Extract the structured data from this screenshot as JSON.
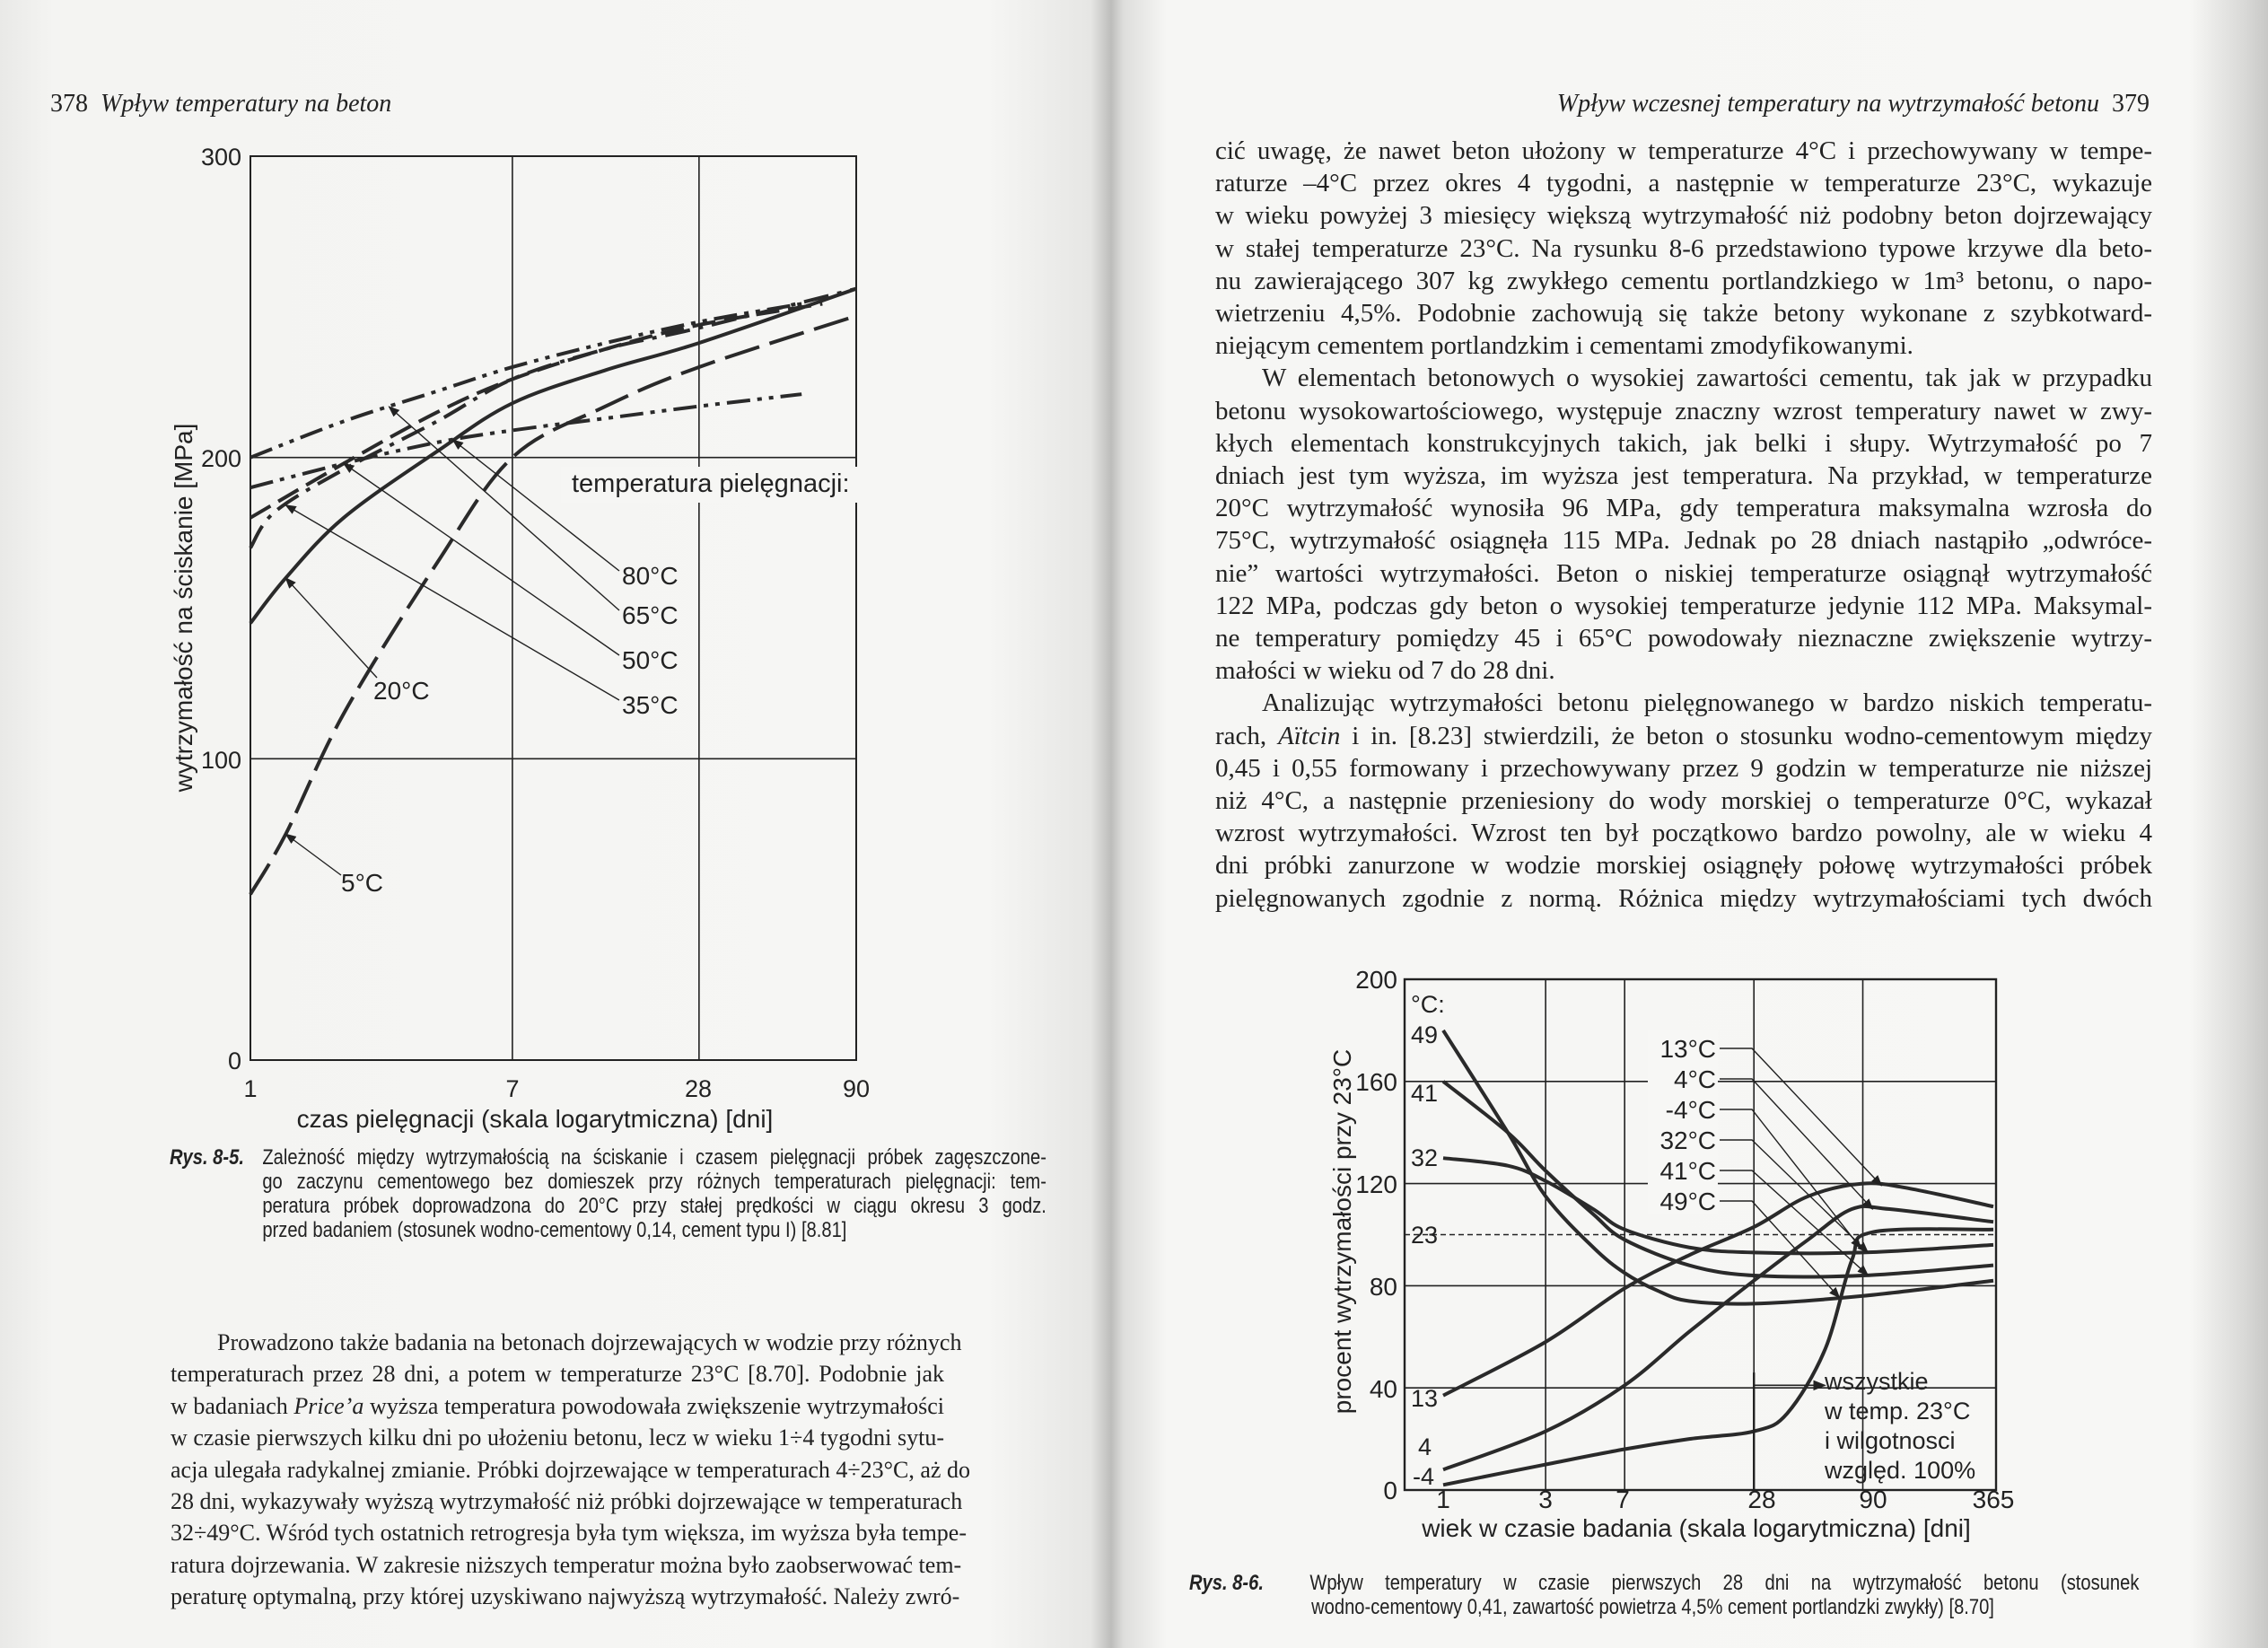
{
  "left_page": {
    "page_number": "378",
    "running_head": "Wpływ temperatury na beton",
    "caption": {
      "label": "Rys. 8-5.",
      "lines": [
        "Zależność między wytrzymałością na ściskanie i czasem pielęgnacji próbek zagęszczone-",
        "go zaczynu cementowego bez domieszek przy różnych temperaturach pielęgnacji: tem-",
        "peratura próbek doprowadzona do 20°C przy stałej prędkości w ciągu okresu 3 godz.",
        "przed badaniem (stosunek wodno-cementowy  0,14, cement typu I) [8.81]"
      ]
    },
    "body_lines": [
      "Prowadzono także badania na betonach dojrzewających w wodzie przy różnych",
      "temperaturach przez 28 dni, a potem w temperaturze 23°C [8.70]. Podobnie jak",
      [
        "w badaniach ",
        "Price’a",
        " wyższa temperatura powodowała zwiększenie wytrzymałości"
      ],
      "w czasie pierwszych kilku dni po ułożeniu betonu, lecz w wieku 1÷4 tygodni sytu-",
      "acja ulegała radykalnej zmianie. Próbki dojrzewające w temperaturach 4÷23°C, aż do",
      "28 dni, wykazywały wyższą wytrzymałość niż próbki dojrzewające w temperaturach",
      "32÷49°C. Wśród tych ostatnich retrogresja była tym większa, im wyższa była tempe-",
      "ratura dojrzewania. W zakresie niższych temperatur można było zaobserwować tem-",
      "peraturę optymalną, przy której uzyskiwano najwyższą wytrzymałość. Należy zwró-"
    ]
  },
  "right_page": {
    "page_number": "379",
    "running_head": "Wpływ wczesnej temperatury na wytrzymałość betonu",
    "body_lines": [
      "cić uwagę, że nawet beton ułożony w temperaturze 4°C i przechowywany w tempe-",
      "raturze –4°C przez okres 4 tygodni, a następnie w temperaturze 23°C, wykazuje",
      "w wieku powyżej 3 miesięcy większą wytrzymałość niż podobny beton dojrzewający",
      "w stałej temperaturze 23°C. Na rysunku 8-6 przedstawiono typowe krzywe dla beto-",
      "nu zawierającego 307 kg zwykłego cementu portlandzkiego w 1m³ betonu, o napo-",
      "wietrzeniu 4,5%. Podobnie zachowują się także betony wykonane z szybkotward-",
      "niejącym cementem portlandzkim i cementami zmodyfikowanymi.",
      "W elementach betonowych o wysokiej zawartości cementu, tak jak w przypadku",
      "betonu wysokowartościowego, występuje znaczny wzrost temperatury nawet w zwy-",
      "kłych elementach konstrukcyjnych takich, jak belki i słupy. Wytrzymałość po 7",
      "dniach jest tym wyższa, im wyższa jest temperatura. Na przykład, w temperaturze",
      "20°C wytrzymałość wynosiła 96 MPa, gdy temperatura maksymalna wzrosła do",
      "75°C, wytrzymałość osiągnęła 115 MPa. Jednak po 28 dniach nastąpiło „odwróce-",
      "nie” wartości wytrzymałości. Beton o niskiej temperaturze osiągnął wytrzymałość",
      "122 MPa, podczas gdy beton o wysokiej temperaturze jedynie 112 MPa. Maksymal-",
      "ne temperatury pomiędzy 45 i 65°C powodowały nieznaczne zwiększenie wytrzy-",
      "małości w wieku od 7 do 28 dni.",
      "Analizując wytrzymałości betonu pielęgnowanego w bardzo niskich temperatu-",
      [
        "rach, ",
        "Aïtcin",
        " i in. [8.23] stwierdzili, że beton o stosunku wodno-cementowym między"
      ],
      "0,45 i 0,55 formowany i przechowywany przez 9 godzin w temperaturze nie niższej",
      "niż 4°C, a następnie przeniesiony do wody morskiej o temperaturze 0°C, wykazał",
      "wzrost wytrzymałości. Wzrost ten był początkowo bardzo powolny, ale w wieku 4",
      "dni próbki zanurzone w wodzie morskiej osiągnęły połowę wytrzymałości próbek",
      "pielęgnowanych zgodnie z normą.  Różnica  między  wytrzymałościami tych dwóch"
    ],
    "caption": {
      "label": "Rys. 8-6.",
      "lines": [
        "Wpływ temperatury w czasie pierwszych 28 dni na wytrzymałość betonu (stosunek",
        "wodno-cementowy 0,41, zawartość powietrza 4,5% cement portlandzki zwykły) [8.70]"
      ]
    }
  },
  "chart_data": [
    {
      "type": "line",
      "xscale": "log",
      "xlim": [
        1,
        90
      ],
      "ylim": [
        0,
        300
      ],
      "xticks": [
        "1",
        "7",
        "28",
        "90"
      ],
      "yticks": [
        "0",
        "100",
        "200",
        "300"
      ],
      "grid": true,
      "xlabel": "czas pielęgnacji (skala logarytmiczna) [dni]",
      "ylabel": "wytrzymałość na ściskanie [MPa]",
      "legend_title": "temperatura pielęgnacji:",
      "line_color": "#2a2a2a",
      "series": [
        {
          "name": "80°C",
          "style": "dash-dot-dot",
          "points": [
            [
              1,
              190
            ],
            [
              2,
              198
            ],
            [
              4,
              205
            ],
            [
              7,
              209
            ],
            [
              14,
              213
            ],
            [
              28,
              217
            ],
            [
              60,
              221
            ]
          ]
        },
        {
          "name": "65°C",
          "style": "dash-dot-dot",
          "points": [
            [
              1,
              200
            ],
            [
              2,
              212
            ],
            [
              4,
              222
            ],
            [
              7,
              230
            ],
            [
              14,
              238
            ],
            [
              28,
              245
            ],
            [
              60,
              251
            ]
          ]
        },
        {
          "name": "50°C",
          "style": "dashed",
          "points": [
            [
              1,
              180
            ],
            [
              2,
              198
            ],
            [
              4,
              215
            ],
            [
              7,
              226
            ],
            [
              14,
              236
            ],
            [
              28,
              244
            ],
            [
              70,
              251
            ]
          ]
        },
        {
          "name": "35°C",
          "style": "dash-dot",
          "points": [
            [
              1,
              170
            ],
            [
              1.2,
              182
            ],
            [
              2,
              196
            ],
            [
              4,
              212
            ],
            [
              7,
              226
            ],
            [
              14,
              236
            ],
            [
              28,
              243
            ],
            [
              90,
              256
            ]
          ]
        },
        {
          "name": "20°C",
          "style": "solid",
          "points": [
            [
              1,
              145
            ],
            [
              1.3,
              160
            ],
            [
              2,
              180
            ],
            [
              4,
              202
            ],
            [
              7,
              218
            ],
            [
              14,
              229
            ],
            [
              28,
              238
            ],
            [
              90,
              256
            ]
          ]
        },
        {
          "name": "5°C",
          "style": "long-dash",
          "points": [
            [
              1,
              55
            ],
            [
              1.3,
              75
            ],
            [
              2,
              115
            ],
            [
              4,
              165
            ],
            [
              7,
              200
            ],
            [
              14,
              217
            ],
            [
              28,
              230
            ],
            [
              90,
              247
            ]
          ]
        }
      ]
    },
    {
      "type": "line",
      "xscale": "log",
      "xlim": [
        1,
        365
      ],
      "ylim": [
        0,
        200
      ],
      "xticks": [
        "1",
        "3",
        "7",
        "28",
        "90",
        "365"
      ],
      "yticks": [
        "0",
        "40",
        "80",
        "120",
        "160",
        "200"
      ],
      "grid": true,
      "reference_line": {
        "y": 100,
        "label": "23",
        "style": "dashed"
      },
      "xlabel": "wiek w czasie badania (skala logarytmiczna) [dni]",
      "ylabel": "procent wytrzymałości przy 23°C",
      "start_labels_title": "°C:",
      "line_color": "#2a2a2a",
      "series": [
        {
          "name": "13°C",
          "start_label": "13",
          "points": [
            [
              1,
              37
            ],
            [
              3,
              58
            ],
            [
              7,
              79
            ],
            [
              14,
              92
            ],
            [
              28,
              103
            ],
            [
              50,
              115
            ],
            [
              90,
              120
            ],
            [
              150,
              118
            ],
            [
              365,
              111
            ]
          ]
        },
        {
          "name": "4°C",
          "start_label": "4",
          "points": [
            [
              1,
              8
            ],
            [
              3,
              23
            ],
            [
              7,
              41
            ],
            [
              14,
              62
            ],
            [
              28,
              82
            ],
            [
              50,
              98
            ],
            [
              80,
              110
            ],
            [
              120,
              110
            ],
            [
              365,
              105
            ]
          ]
        },
        {
          "name": "-4°C",
          "start_label": "-4",
          "points": [
            [
              1,
              2
            ],
            [
              3,
              10
            ],
            [
              7,
              16
            ],
            [
              14,
              20
            ],
            [
              28,
              23
            ],
            [
              40,
              30
            ],
            [
              60,
              55
            ],
            [
              80,
              90
            ],
            [
              100,
              101
            ],
            [
              365,
              102
            ]
          ]
        },
        {
          "name": "32°C",
          "start_label": "32",
          "points": [
            [
              1,
              130
            ],
            [
              2,
              127
            ],
            [
              3,
              121
            ],
            [
              5,
              110
            ],
            [
              7,
              102
            ],
            [
              14,
              95
            ],
            [
              28,
              93
            ],
            [
              90,
              93
            ],
            [
              365,
              96
            ]
          ]
        },
        {
          "name": "41°C",
          "start_label": "41",
          "points": [
            [
              1,
              160
            ],
            [
              2,
              140
            ],
            [
              3,
              125
            ],
            [
              5,
              108
            ],
            [
              7,
              98
            ],
            [
              14,
              88
            ],
            [
              28,
              84
            ],
            [
              90,
              84
            ],
            [
              365,
              88
            ]
          ]
        },
        {
          "name": "49°C",
          "start_label": "49",
          "points": [
            [
              1,
              180
            ],
            [
              2,
              140
            ],
            [
              3,
              115
            ],
            [
              5,
              95
            ],
            [
              7,
              85
            ],
            [
              10,
              78
            ],
            [
              14,
              74
            ],
            [
              28,
              73
            ],
            [
              90,
              76
            ],
            [
              365,
              82
            ]
          ]
        }
      ],
      "annotation": [
        "wszystkie",
        "w temp. 23°C",
        "i wilgotnosci",
        "względ. 100%"
      ]
    }
  ]
}
